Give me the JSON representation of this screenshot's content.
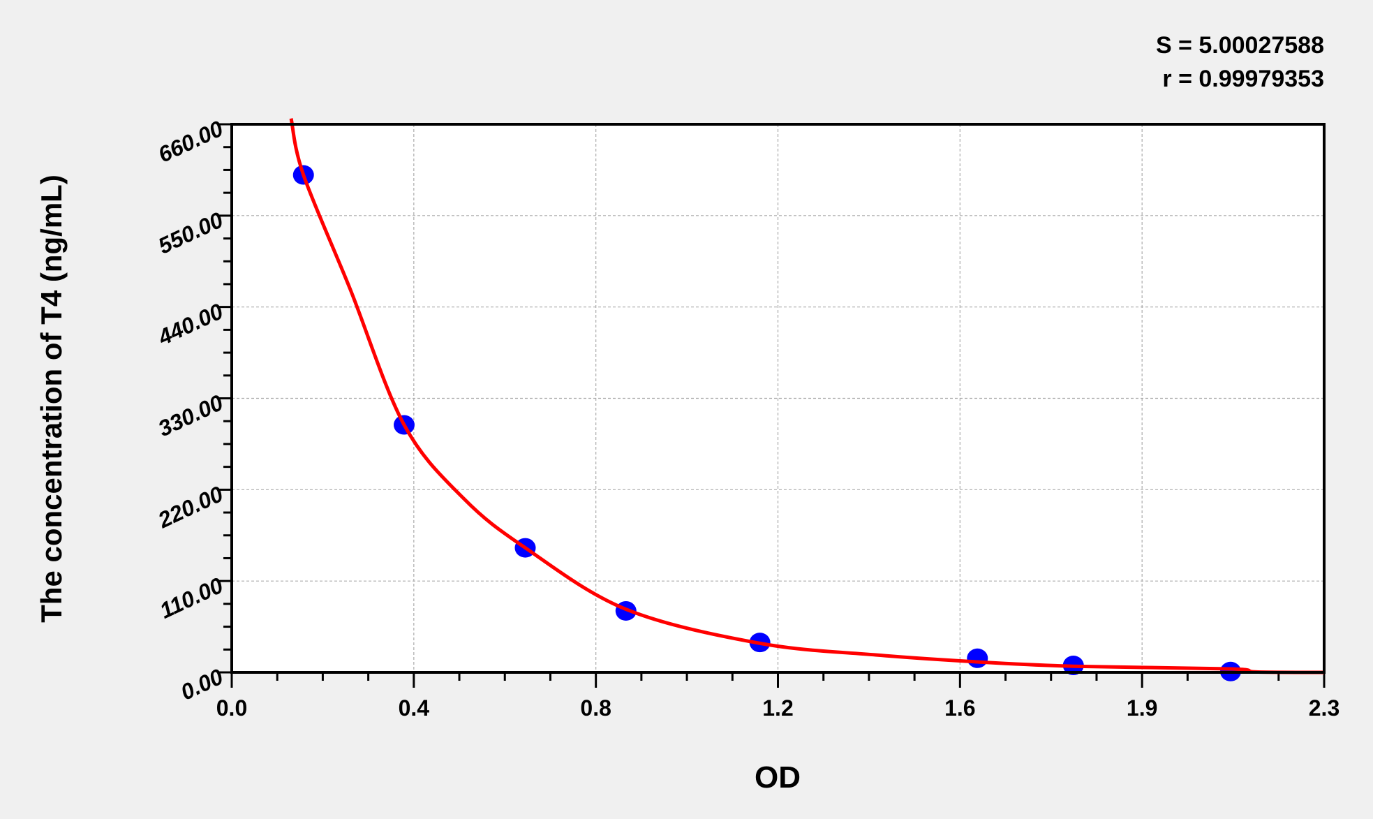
{
  "chart_data": {
    "type": "scatter",
    "title": "",
    "xlabel": "OD",
    "ylabel": "The concentration of T4 (ng/mL)",
    "xlim": [
      0,
      2.3
    ],
    "ylim": [
      0,
      660
    ],
    "x_tick_labels": [
      "0.0",
      "0.4",
      "0.8",
      "1.2",
      "1.6",
      "1.9",
      "2.3"
    ],
    "y_tick_labels": [
      "0.00",
      "110.00",
      "220.00",
      "330.00",
      "440.00",
      "550.00",
      "660.00"
    ],
    "grid": true,
    "annotations": [
      "S = 5.00027588",
      "r = 0.99979353"
    ],
    "points": [
      {
        "x": 0.151,
        "y": 599
      },
      {
        "x": 0.363,
        "y": 298
      },
      {
        "x": 0.618,
        "y": 150
      },
      {
        "x": 0.83,
        "y": 74
      },
      {
        "x": 1.112,
        "y": 36
      },
      {
        "x": 1.57,
        "y": 17
      },
      {
        "x": 1.772,
        "y": 8.4
      },
      {
        "x": 2.103,
        "y": 1
      }
    ],
    "fit_curve": [
      {
        "x": 0.125,
        "y": 667
      },
      {
        "x": 0.151,
        "y": 599
      },
      {
        "x": 0.249,
        "y": 462
      },
      {
        "x": 0.363,
        "y": 298
      },
      {
        "x": 0.489,
        "y": 209
      },
      {
        "x": 0.618,
        "y": 150
      },
      {
        "x": 0.83,
        "y": 76
      },
      {
        "x": 1.112,
        "y": 35
      },
      {
        "x": 1.356,
        "y": 21
      },
      {
        "x": 1.57,
        "y": 12.6
      },
      {
        "x": 1.772,
        "y": 7.4
      },
      {
        "x": 2.103,
        "y": 4.2
      },
      {
        "x": 2.158,
        "y": 0.5
      },
      {
        "x": 2.3,
        "y": 0
      }
    ],
    "colors": {
      "points": "#0000ff",
      "curve": "#ff0000",
      "background": "#f0f0f0",
      "plot_area": "#ffffff"
    }
  }
}
